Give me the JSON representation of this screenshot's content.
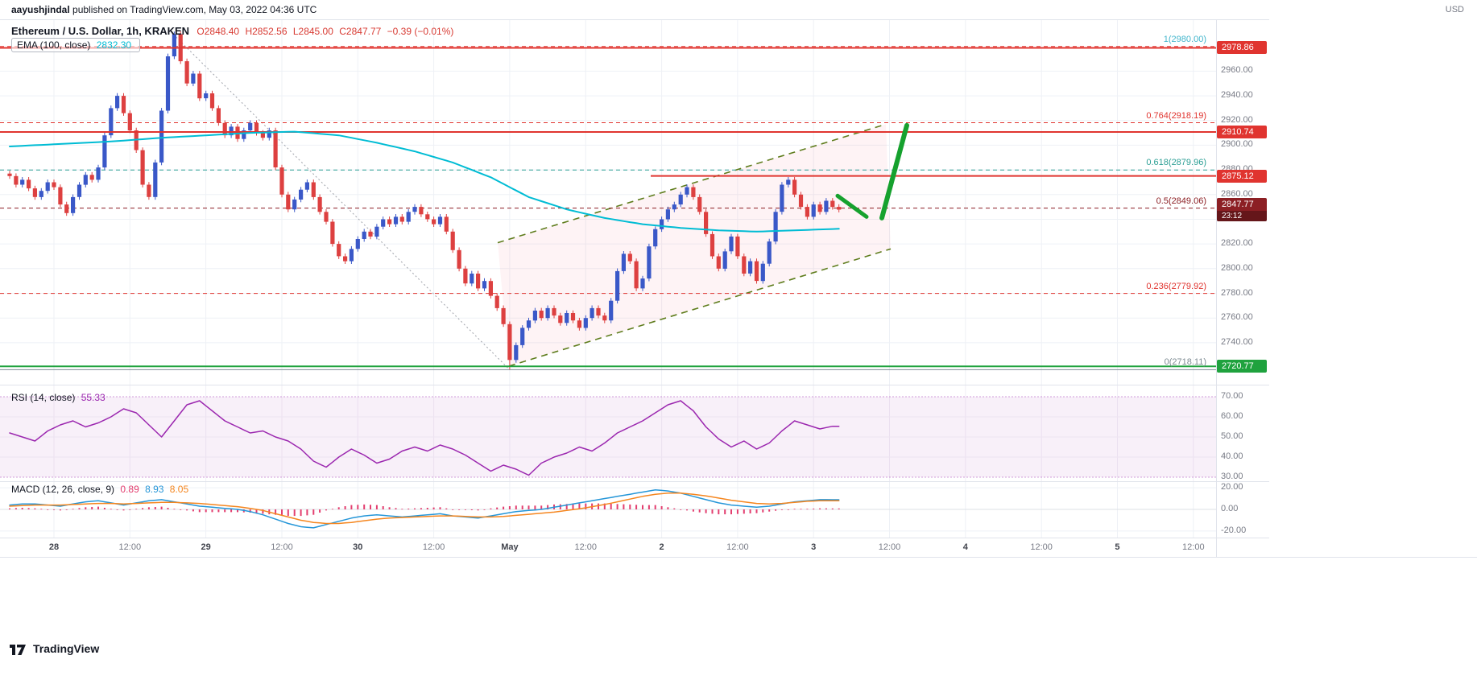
{
  "attribution": {
    "user": "aayushjindal",
    "rest": " published on TradingView.com, May 03, 2022 04:36 UTC"
  },
  "price_axis_currency": "USD",
  "watermark": "TradingView",
  "main_pane": {
    "symbol_title": "Ethereum / U.S. Dollar, 1h, KRAKEN",
    "ohlc": {
      "o": "O2848.40",
      "h": "H2852.56",
      "l": "L2845.00",
      "c": "C2847.77",
      "change": "−0.39 (−0.01%)"
    },
    "ema_legend": {
      "label": "EMA (100, close)",
      "value": "2832.30",
      "color": "#00bcd4"
    },
    "price_axis": {
      "ticks": [
        "2960.00",
        "2940.00",
        "2920.00",
        "2900.00",
        "2880.00",
        "2860.00",
        "2840.00",
        "2820.00",
        "2800.00",
        "2780.00",
        "2760.00",
        "2740.00"
      ],
      "badges": [
        {
          "text": "2978.86",
          "bg": "#e0342f"
        },
        {
          "text": "2910.74",
          "bg": "#e0342f"
        },
        {
          "text": "2875.12",
          "bg": "#e0342f"
        },
        {
          "text": "2847.77",
          "countdown": "23:12",
          "bg": "#8c1f24"
        },
        {
          "text": "2720.77",
          "bg": "#1fa23e"
        }
      ]
    },
    "fib_levels": [
      {
        "label": "1(2980.00)",
        "price": 2980.0,
        "color": "#43b6cc",
        "line_color": "#e0342f",
        "style": "dashed"
      },
      {
        "label": "0.764(2918.19)",
        "price": 2918.19,
        "color": "#e0342f",
        "line_color": "#e0342f",
        "style": "dashed"
      },
      {
        "label": "0.618(2879.96)",
        "price": 2879.96,
        "color": "#2b9e94",
        "line_color": "#2b9e94",
        "style": "dashed"
      },
      {
        "label": "0.5(2849.06)",
        "price": 2849.06,
        "color": "#8c1f24",
        "line_color": "#8c1f24",
        "style": "dashed"
      },
      {
        "label": "0.236(2779.92)",
        "price": 2779.92,
        "color": "#e0342f",
        "line_color": "#e0342f",
        "style": "dashed"
      },
      {
        "label": "0(2718.11)",
        "price": 2718.11,
        "color": "#7d8b92",
        "line_color": "#7d8b92",
        "style": "solid"
      }
    ],
    "drawn_lines": [
      {
        "price": 2978.86,
        "color": "#e0342f",
        "x_start": 0
      },
      {
        "price": 2910.74,
        "color": "#e0342f",
        "x_start": 0
      },
      {
        "price": 2875.12,
        "color": "#e0342f",
        "x_start": 808
      },
      {
        "price": 2720.77,
        "color": "#1fa23e",
        "x_start": 0
      }
    ]
  },
  "rsi_pane": {
    "label": "RSI (14, close)",
    "value": "55.33",
    "ticks": [
      "70.00",
      "60.00",
      "50.00",
      "40.00",
      "30.00"
    ]
  },
  "macd_pane": {
    "label": "MACD (12, 26, close, 9)",
    "values": [
      {
        "text": "0.89",
        "color": "#e33e6f"
      },
      {
        "text": "8.93",
        "color": "#2596d8"
      },
      {
        "text": "8.05",
        "color": "#f5861f"
      }
    ],
    "ticks": [
      "20.00",
      "0.00",
      "-20.00"
    ]
  },
  "time_axis": {
    "labels": [
      "28",
      "12:00",
      "29",
      "12:00",
      "30",
      "12:00",
      "May",
      "12:00",
      "2",
      "12:00",
      "3",
      "12:00",
      "4",
      "12:00",
      "5",
      "12:00"
    ]
  },
  "chart_data": {
    "type": "candlestick",
    "title": "Ethereum / U.S. Dollar, 1h, KRAKEN",
    "interval": "1h",
    "y_range": [
      2706,
      3002
    ],
    "candles": {
      "up_color": "#3a58c8",
      "down_color": "#dd4040",
      "closes": [
        2875,
        2868,
        2872,
        2865,
        2858,
        2863,
        2870,
        2866,
        2852,
        2845,
        2858,
        2868,
        2876,
        2872,
        2882,
        2908,
        2930,
        2940,
        2926,
        2912,
        2896,
        2868,
        2858,
        2886,
        2928,
        2972,
        2990,
        2968,
        2950,
        2958,
        2938,
        2942,
        2930,
        2918,
        2908,
        2915,
        2905,
        2912,
        2918,
        2910,
        2906,
        2912,
        2882,
        2860,
        2848,
        2856,
        2864,
        2870,
        2858,
        2846,
        2838,
        2820,
        2810,
        2806,
        2816,
        2824,
        2830,
        2826,
        2834,
        2840,
        2836,
        2842,
        2838,
        2846,
        2850,
        2844,
        2840,
        2836,
        2842,
        2830,
        2815,
        2800,
        2788,
        2796,
        2784,
        2790,
        2778,
        2768,
        2755,
        2726,
        2738,
        2752,
        2758,
        2766,
        2760,
        2768,
        2762,
        2756,
        2764,
        2758,
        2752,
        2760,
        2768,
        2762,
        2758,
        2774,
        2798,
        2812,
        2806,
        2784,
        2792,
        2818,
        2832,
        2840,
        2848,
        2852,
        2860,
        2866,
        2858,
        2846,
        2828,
        2810,
        2800,
        2814,
        2826,
        2810,
        2796,
        2806,
        2790,
        2804,
        2822,
        2846,
        2868,
        2872,
        2860,
        2850,
        2842,
        2852,
        2846,
        2855,
        2850,
        2847.77
      ],
      "wick_overrides": {
        "26": {
          "high": 2992
        },
        "79": {
          "low": 2718.5
        }
      }
    },
    "ema100": {
      "color": "#00bcd4",
      "points": [
        [
          0,
          2899
        ],
        [
          8,
          2901
        ],
        [
          16,
          2903
        ],
        [
          24,
          2906
        ],
        [
          31,
          2908
        ],
        [
          38,
          2910
        ],
        [
          45,
          2911
        ],
        [
          52,
          2908
        ],
        [
          58,
          2902
        ],
        [
          64,
          2895
        ],
        [
          70,
          2886
        ],
        [
          76,
          2874
        ],
        [
          82,
          2858
        ],
        [
          88,
          2848
        ],
        [
          94,
          2841
        ],
        [
          100,
          2836
        ],
        [
          106,
          2833
        ],
        [
          112,
          2831
        ],
        [
          118,
          2830
        ],
        [
          124,
          2831
        ],
        [
          131,
          2832.3
        ]
      ]
    },
    "rsi14": {
      "color": "#9b27af",
      "step": 2,
      "y_range": [
        28,
        76
      ],
      "values": [
        52,
        50,
        48,
        53,
        56,
        58,
        55,
        57,
        60,
        64,
        62,
        56,
        50,
        58,
        66,
        68,
        63,
        58,
        55,
        52,
        53,
        50,
        48,
        44,
        38,
        35,
        40,
        44,
        41,
        37,
        39,
        43,
        45,
        43,
        46,
        44,
        41,
        37,
        33,
        36,
        34,
        31,
        37,
        40,
        42,
        45,
        43,
        47,
        52,
        55,
        58,
        62,
        66,
        68,
        63,
        55,
        49,
        45,
        48,
        44,
        47,
        53,
        58,
        56,
        54,
        55.33
      ]
    },
    "macd": {
      "macd_color": "#2596d8",
      "signal_color": "#f5861f",
      "hist_color": "#e33e6f",
      "step": 2,
      "y_range": [
        -26,
        26
      ],
      "macd": [
        4,
        5,
        5,
        4,
        3,
        5,
        7,
        8,
        6,
        4,
        6,
        8,
        9,
        7,
        5,
        3,
        2,
        1,
        0,
        -2,
        -5,
        -9,
        -13,
        -16,
        -17,
        -14,
        -11,
        -8,
        -6,
        -5,
        -6,
        -7,
        -6,
        -5,
        -4,
        -6,
        -7,
        -8,
        -6,
        -4,
        -2,
        -1,
        0,
        2,
        4,
        6,
        8,
        10,
        12,
        14,
        16,
        18,
        17,
        15,
        12,
        9,
        6,
        4,
        3,
        2,
        3,
        5,
        7,
        8,
        9,
        8.93
      ],
      "signal": [
        3,
        3.5,
        4,
        4,
        4,
        4.5,
        5,
        5.5,
        5.5,
        5,
        5.5,
        6,
        6.5,
        6.5,
        6,
        5.5,
        4.5,
        3.5,
        2.5,
        1,
        -1,
        -4,
        -7,
        -10,
        -12,
        -13,
        -13,
        -12,
        -10.5,
        -9,
        -8,
        -7.5,
        -7,
        -6.5,
        -6,
        -6,
        -6.5,
        -7,
        -7,
        -6.5,
        -5.5,
        -4.5,
        -3.5,
        -2.5,
        -1,
        0.5,
        2.5,
        4.5,
        7,
        9.5,
        12,
        14,
        15,
        15,
        14,
        12.5,
        10.5,
        8.5,
        7,
        5.5,
        5,
        5.5,
        6.5,
        7.5,
        8,
        8.05
      ]
    },
    "annotations": {
      "trendline": {
        "x": [
          215,
          633
        ],
        "price": [
          2990,
          2718
        ],
        "color": "#a0a3ab",
        "style": "dotted"
      },
      "channel": {
        "upper": {
          "x": [
            618,
            1100
          ],
          "price": [
            2821,
            2917
          ]
        },
        "lower": {
          "x": [
            632,
            1106
          ],
          "price": [
            2721,
            2816
          ]
        },
        "color": "#5f7d1d",
        "fill": "rgba(236,84,112,0.07)",
        "style": "dashed"
      },
      "arrows": [
        {
          "x": [
            1040,
            1076
          ],
          "price": [
            2859,
            2842
          ],
          "color": "#16a12e",
          "width": 5
        },
        {
          "x": [
            1095,
            1126
          ],
          "price": [
            2841,
            2916
          ],
          "color": "#16a12e",
          "width": 6
        }
      ]
    }
  }
}
